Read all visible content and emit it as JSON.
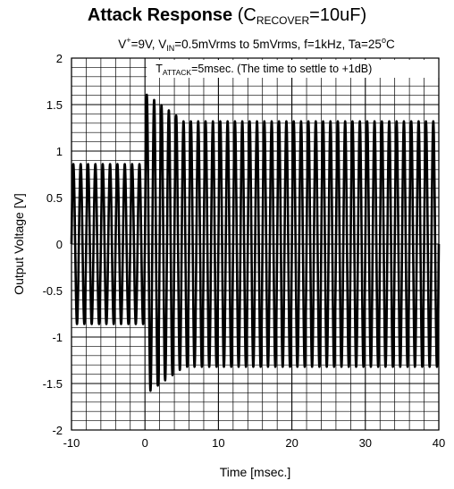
{
  "chart_data": {
    "type": "line",
    "title": {
      "main": "Attack Response",
      "paren_open": " (C",
      "sub": "RECOVER",
      "rest": "=10uF)"
    },
    "subtitle": {
      "v": "V",
      "v_sup": "+",
      "part1": "=9V, V",
      "vin_sub": "IN",
      "part2": "=0.5mVrms to 5mVrms, f=1kHz, Ta=25",
      "deg": "o",
      "part3": "C"
    },
    "annotation": {
      "t": "T",
      "sub": "ATTACK",
      "text": "=5msec. (The time to settle to +1dB)"
    },
    "xlabel": "Time [msec.]",
    "ylabel": "Output Voltage [V]",
    "xlim": [
      -10,
      40
    ],
    "ylim": [
      -2,
      2
    ],
    "x_ticks": [
      "-10",
      "0",
      "10",
      "20",
      "30",
      "40"
    ],
    "y_ticks": [
      "2",
      "1.5",
      "1",
      "0.5",
      "0",
      "-0.5",
      "-1",
      "-1.5",
      "-2"
    ],
    "x_tick_values": [
      -10,
      0,
      10,
      20,
      30,
      40
    ],
    "y_tick_values": [
      2,
      1.5,
      1,
      0.5,
      0,
      -0.5,
      -1,
      -1.5,
      -2
    ],
    "grid": true,
    "minor_grid_x_step": 2,
    "minor_grid_y_step": 0.1,
    "series": [
      {
        "frequency_khz": 1,
        "segments": [
          {
            "t_start": -10,
            "t_end": 0,
            "amplitude": 0.86
          },
          {
            "t_start": 0,
            "t_end": 5,
            "amplitude_start": 1.62,
            "amplitude_end": 1.34
          },
          {
            "t_start": 5,
            "t_end": 40,
            "amplitude": 1.32
          }
        ]
      }
    ],
    "colors": {
      "line": "#000000",
      "grid": "#000000",
      "background": "#ffffff"
    }
  }
}
